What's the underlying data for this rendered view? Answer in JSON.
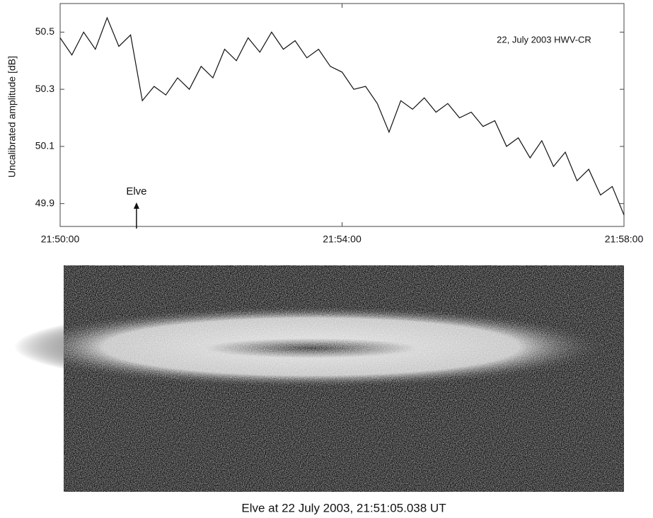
{
  "chart_data": {
    "type": "line",
    "ylabel": "Uncalibrated amplitude [dB]",
    "annotations": [
      {
        "text": "22, July 2003 HWV-CR"
      },
      {
        "text": "Elve",
        "x": "21:51:05"
      }
    ],
    "caption": "Elve at 22 July 2003, 21:51:05.038 UT",
    "x": [
      "21:50:00",
      "21:50:10",
      "21:50:20",
      "21:50:30",
      "21:50:40",
      "21:50:50",
      "21:51:00",
      "21:51:10",
      "21:51:20",
      "21:51:30",
      "21:51:40",
      "21:51:50",
      "21:52:00",
      "21:52:10",
      "21:52:20",
      "21:52:30",
      "21:52:40",
      "21:52:50",
      "21:53:00",
      "21:53:10",
      "21:53:20",
      "21:53:30",
      "21:53:40",
      "21:53:50",
      "21:54:00",
      "21:54:10",
      "21:54:20",
      "21:54:30",
      "21:54:40",
      "21:54:50",
      "21:55:00",
      "21:55:10",
      "21:55:20",
      "21:55:30",
      "21:55:40",
      "21:55:50",
      "21:56:00",
      "21:56:10",
      "21:56:20",
      "21:56:30",
      "21:56:40",
      "21:56:50",
      "21:57:00",
      "21:57:10",
      "21:57:20",
      "21:57:30",
      "21:57:40",
      "21:57:50",
      "21:58:00"
    ],
    "values": [
      50.48,
      50.42,
      50.5,
      50.44,
      50.55,
      50.45,
      50.49,
      50.26,
      50.31,
      50.28,
      50.34,
      50.3,
      50.38,
      50.34,
      50.44,
      50.4,
      50.48,
      50.43,
      50.5,
      50.44,
      50.47,
      50.41,
      50.44,
      50.38,
      50.36,
      50.3,
      50.31,
      50.25,
      50.15,
      50.26,
      50.23,
      50.27,
      50.22,
      50.25,
      50.2,
      50.22,
      50.17,
      50.19,
      50.1,
      50.13,
      50.06,
      50.12,
      50.03,
      50.08,
      49.98,
      50.02,
      49.93,
      49.96,
      49.86
    ],
    "color": "#111111",
    "xlim": [
      "21:50:00",
      "21:58:00"
    ],
    "xticks": [
      "21:50:00",
      "21:54:00",
      "21:58:00"
    ],
    "ylim": [
      49.82,
      50.6
    ],
    "yticks": [
      49.9,
      50.1,
      50.3,
      50.5
    ],
    "grid": false
  }
}
